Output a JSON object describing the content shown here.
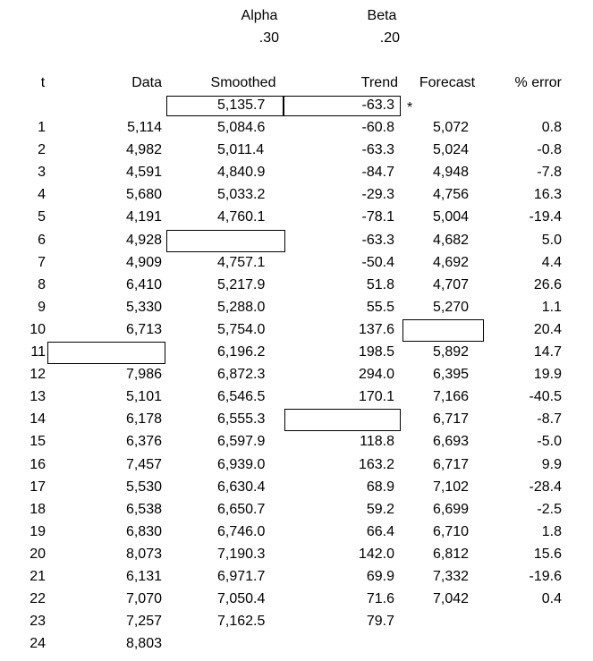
{
  "parameters": {
    "alpha_label": "Alpha",
    "alpha": ".30",
    "beta_label": "Beta",
    "beta": ".20"
  },
  "table": {
    "columns": [
      "t",
      "Data",
      "Smoothed",
      "Trend",
      "Forecast",
      "% error"
    ],
    "initial": {
      "smoothed": "5,135.7",
      "trend": "-63.3",
      "note": "*"
    },
    "rows": [
      [
        "1",
        "5,114",
        "5,084.6",
        "-60.8",
        "5,072",
        "0.8"
      ],
      [
        "2",
        "4,982",
        "5,011.4",
        "-63.3",
        "5,024",
        "-0.8"
      ],
      [
        "3",
        "4,591",
        "4,840.9",
        "-84.7",
        "4,948",
        "-7.8"
      ],
      [
        "4",
        "5,680",
        "5,033.2",
        "-29.3",
        "4,756",
        "16.3"
      ],
      [
        "5",
        "4,191",
        "4,760.1",
        "-78.1",
        "5,004",
        "-19.4"
      ],
      [
        "6",
        "4,928",
        null,
        "-63.3",
        "4,682",
        "5.0"
      ],
      [
        "7",
        "4,909",
        "4,757.1",
        "-50.4",
        "4,692",
        "4.4"
      ],
      [
        "8",
        "6,410",
        "5,217.9",
        "51.8",
        "4,707",
        "26.6"
      ],
      [
        "9",
        "5,330",
        "5,288.0",
        "55.5",
        "5,270",
        "1.1"
      ],
      [
        "10",
        "6,713",
        "5,754.0",
        "137.6",
        null,
        "20.4"
      ],
      [
        "11",
        null,
        "6,196.2",
        "198.5",
        "5,892",
        "14.7"
      ],
      [
        "12",
        "7,986",
        "6,872.3",
        "294.0",
        "6,395",
        "19.9"
      ],
      [
        "13",
        "5,101",
        "6,546.5",
        "170.1",
        "7,166",
        "-40.5"
      ],
      [
        "14",
        "6,178",
        "6,555.3",
        null,
        "6,717",
        "-8.7"
      ],
      [
        "15",
        "6,376",
        "6,597.9",
        "118.8",
        "6,693",
        "-5.0"
      ],
      [
        "16",
        "7,457",
        "6,939.0",
        "163.2",
        "6,717",
        "9.9"
      ],
      [
        "17",
        "5,530",
        "6,630.4",
        "68.9",
        "7,102",
        "-28.4"
      ],
      [
        "18",
        "6,538",
        "6,650.7",
        "59.2",
        "6,699",
        "-2.5"
      ],
      [
        "19",
        "6,830",
        "6,746.0",
        "66.4",
        "6,710",
        "1.8"
      ],
      [
        "20",
        "8,073",
        "7,190.3",
        "142.0",
        "6,812",
        "15.6"
      ],
      [
        "21",
        "6,131",
        "6,971.7",
        "69.9",
        "7,332",
        "-19.6"
      ],
      [
        "22",
        "7,070",
        "7,050.4",
        "71.6",
        "7,042",
        "0.4"
      ],
      [
        "23",
        "7,257",
        "7,162.5",
        "79.7",
        null,
        null
      ],
      [
        "24",
        "8,803",
        null,
        null,
        null,
        null
      ]
    ]
  }
}
